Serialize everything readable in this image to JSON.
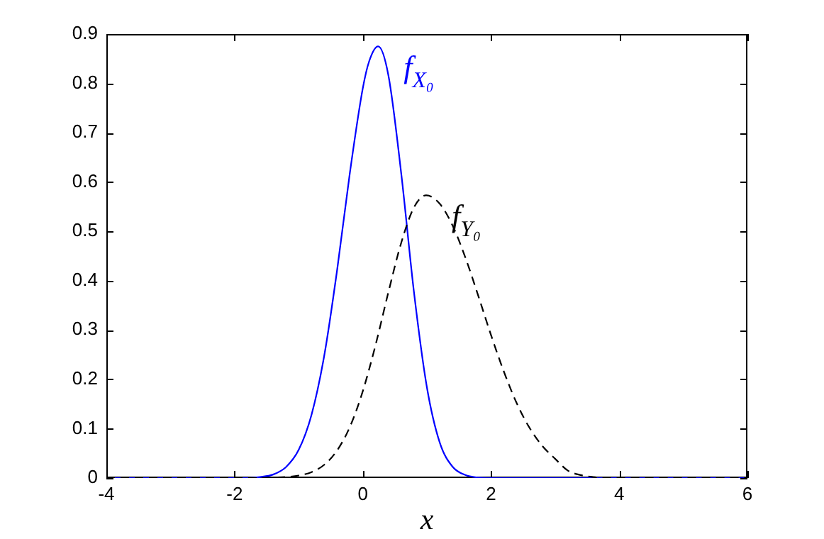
{
  "chart_data": {
    "type": "line",
    "xlabel": "x",
    "xlim": [
      -4,
      6
    ],
    "xticks": [
      -4,
      -2,
      0,
      2,
      4,
      6
    ],
    "ylim": [
      0,
      0.9
    ],
    "yticks": [
      0,
      0.1,
      0.2,
      0.3,
      0.4,
      0.5,
      0.6,
      0.7,
      0.8,
      0.9
    ],
    "grid": false,
    "legend": false,
    "marker": "none",
    "series": [
      {
        "color": "#0000ff",
        "line_style": "solid",
        "x": [
          -4,
          -3,
          -2.4,
          -2,
          -1.8,
          -1.6,
          -1.4,
          -1.2,
          -1,
          -0.8,
          -0.6,
          -0.4,
          -0.2,
          0,
          0.1,
          0.24,
          0.4,
          0.6,
          0.8,
          1,
          1.2,
          1.4,
          1.6,
          1.8,
          2,
          3,
          4,
          5,
          6
        ],
        "values": [
          0,
          0,
          0,
          0,
          0,
          0.002,
          0.007,
          0.022,
          0.057,
          0.128,
          0.249,
          0.422,
          0.62,
          0.79,
          0.845,
          0.875,
          0.816,
          0.617,
          0.375,
          0.184,
          0.072,
          0.023,
          0.006,
          0.001,
          0,
          0,
          0,
          0,
          0
        ]
      },
      {
        "color": "#000000",
        "line_style": "dashed",
        "x": [
          -4,
          -3,
          -2,
          -1.6,
          -1.4,
          -1.2,
          -1,
          -0.8,
          -0.6,
          -0.4,
          -0.2,
          0,
          0.2,
          0.4,
          0.6,
          0.8,
          0.99,
          1.2,
          1.4,
          1.6,
          1.8,
          2,
          2.2,
          2.4,
          2.6,
          2.8,
          3,
          3.2,
          3.4,
          3.6,
          3.8,
          4,
          5,
          6
        ],
        "values": [
          0,
          0,
          0,
          0,
          0.001,
          0.002,
          0.005,
          0.012,
          0.027,
          0.056,
          0.104,
          0.176,
          0.27,
          0.377,
          0.477,
          0.549,
          0.573,
          0.556,
          0.512,
          0.447,
          0.37,
          0.29,
          0.216,
          0.152,
          0.102,
          0.065,
          0.039,
          0.015,
          0.006,
          0.002,
          0,
          0,
          0,
          0
        ]
      }
    ],
    "annotations": [
      "f$_{X₀}$",
      "f$_{Y₀}$"
    ]
  }
}
